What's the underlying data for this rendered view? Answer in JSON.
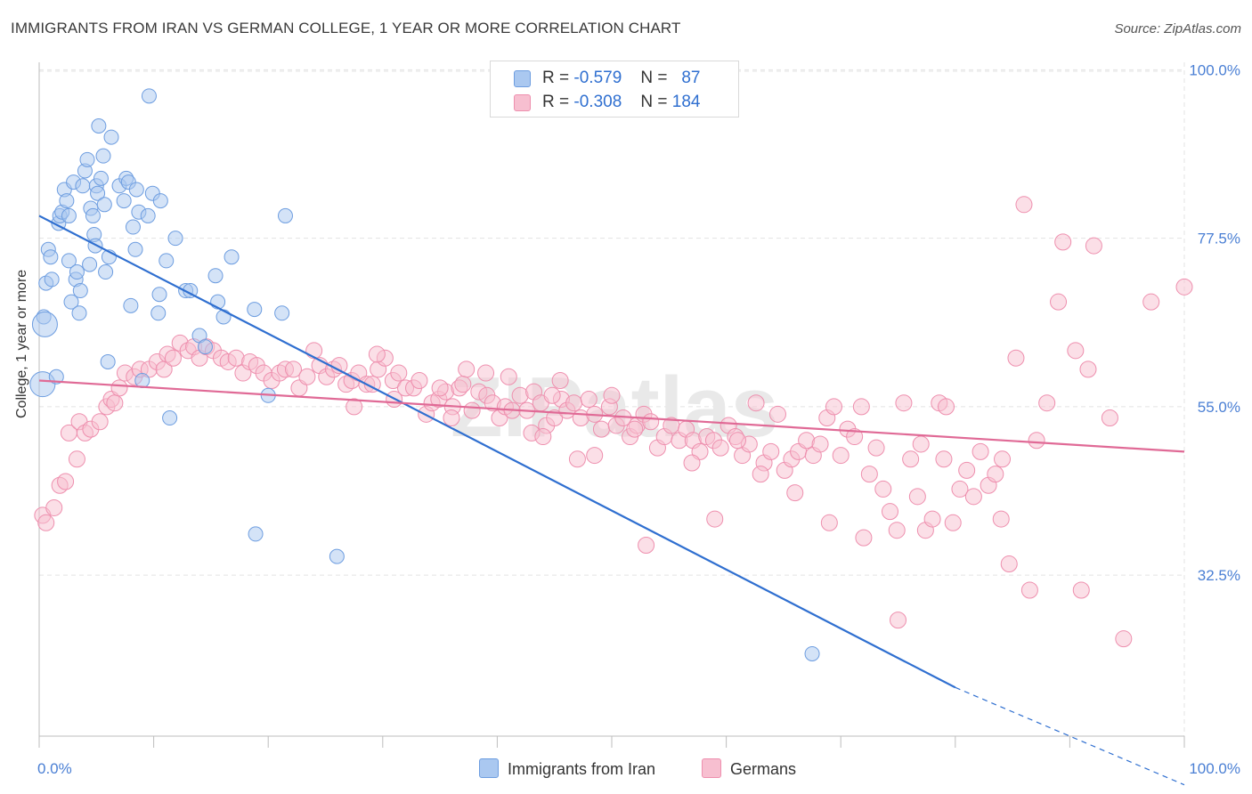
{
  "title": "IMMIGRANTS FROM IRAN VS GERMAN COLLEGE, 1 YEAR OR MORE CORRELATION CHART",
  "source": "Source: ZipAtlas.com",
  "watermark": "ZIPatlas",
  "colors": {
    "blue_fill": "#aac8f0",
    "blue_stroke": "#6d9de0",
    "blue_line": "#2f6fd0",
    "pink_fill": "#f7bfd0",
    "pink_stroke": "#ee8fae",
    "pink_line": "#e06a96",
    "axis_text": "#4a7fd4",
    "grid": "#e3e3e3"
  },
  "legend": {
    "rows": [
      {
        "r_label": "R =",
        "r_value": "-0.579",
        "n_label": "N =",
        "n_value": "87"
      },
      {
        "r_label": "R =",
        "r_value": "-0.308",
        "n_label": "N =",
        "n_value": "184"
      }
    ]
  },
  "chart_data": {
    "type": "scatter",
    "title": "IMMIGRANTS FROM IRAN VS GERMAN COLLEGE, 1 YEAR OR MORE CORRELATION CHART",
    "xlabel": "",
    "ylabel": "College, 1 year or more",
    "xlim": [
      0,
      100
    ],
    "ylim": [
      11,
      101
    ],
    "x_tick_labels": [
      "0.0%",
      "100.0%"
    ],
    "y_ticks": [
      32.5,
      55.0,
      77.5,
      100.0
    ],
    "y_tick_labels": [
      "32.5%",
      "55.0%",
      "77.5%",
      "100.0%"
    ],
    "grid": true,
    "legend_position": "bottom",
    "series": [
      {
        "name": "Immigrants from Iran",
        "color": "#aac8f0",
        "trend": {
          "x": [
            0,
            80
          ],
          "y": [
            80.5,
            17.5
          ],
          "dashed_to": [
            100,
            4.5
          ]
        },
        "points": [
          [
            0.3,
            58.0
          ],
          [
            0.4,
            67.0
          ],
          [
            0.5,
            66.0
          ],
          [
            0.6,
            71.5
          ],
          [
            0.8,
            76.0
          ],
          [
            1.0,
            75.0
          ],
          [
            1.1,
            72.0
          ],
          [
            1.5,
            59.0
          ],
          [
            1.7,
            79.5
          ],
          [
            1.8,
            80.5
          ],
          [
            2.0,
            81.0
          ],
          [
            2.2,
            84.0
          ],
          [
            2.4,
            82.5
          ],
          [
            2.6,
            80.5
          ],
          [
            2.6,
            74.5
          ],
          [
            2.8,
            69.0
          ],
          [
            3.0,
            85.0
          ],
          [
            3.2,
            72.0
          ],
          [
            3.3,
            73.0
          ],
          [
            3.5,
            67.5
          ],
          [
            3.6,
            70.5
          ],
          [
            3.8,
            84.5
          ],
          [
            4.0,
            86.5
          ],
          [
            4.2,
            88.0
          ],
          [
            4.4,
            74.0
          ],
          [
            4.5,
            81.5
          ],
          [
            4.7,
            80.5
          ],
          [
            4.8,
            78.0
          ],
          [
            4.9,
            76.5
          ],
          [
            5.0,
            84.5
          ],
          [
            5.1,
            83.5
          ],
          [
            5.2,
            92.5
          ],
          [
            5.4,
            85.5
          ],
          [
            5.6,
            88.5
          ],
          [
            5.7,
            82.0
          ],
          [
            5.8,
            73.0
          ],
          [
            6.0,
            61.0
          ],
          [
            6.1,
            75.0
          ],
          [
            6.3,
            91.0
          ],
          [
            7.0,
            84.5
          ],
          [
            7.4,
            82.5
          ],
          [
            7.6,
            85.5
          ],
          [
            7.8,
            85.0
          ],
          [
            8.0,
            68.5
          ],
          [
            8.2,
            79.0
          ],
          [
            8.4,
            76.0
          ],
          [
            8.5,
            84.0
          ],
          [
            8.7,
            81.0
          ],
          [
            9.0,
            58.5
          ],
          [
            9.5,
            80.5
          ],
          [
            9.9,
            83.5
          ],
          [
            10.4,
            67.5
          ],
          [
            10.5,
            70.0
          ],
          [
            10.6,
            82.5
          ],
          [
            11.1,
            74.5
          ],
          [
            11.4,
            53.5
          ],
          [
            11.9,
            77.5
          ],
          [
            12.8,
            70.5
          ],
          [
            13.2,
            70.5
          ],
          [
            14.0,
            64.5
          ],
          [
            14.5,
            63.0
          ],
          [
            15.4,
            72.5
          ],
          [
            15.6,
            69.0
          ],
          [
            16.1,
            67.0
          ],
          [
            16.8,
            75.0
          ],
          [
            18.8,
            68.0
          ],
          [
            18.9,
            38.0
          ],
          [
            20.0,
            56.5
          ],
          [
            21.2,
            67.5
          ],
          [
            21.5,
            80.5
          ],
          [
            26.0,
            35.0
          ],
          [
            67.5,
            22.0
          ],
          [
            9.6,
            96.5
          ]
        ]
      },
      {
        "name": "Germans",
        "color": "#f7bfd0",
        "trend": {
          "x": [
            0,
            100
          ],
          "y": [
            58.5,
            49.0
          ]
        },
        "points": [
          [
            0.3,
            40.5
          ],
          [
            0.6,
            39.5
          ],
          [
            1.3,
            41.5
          ],
          [
            1.8,
            44.5
          ],
          [
            2.3,
            45.0
          ],
          [
            2.6,
            51.5
          ],
          [
            3.3,
            48.0
          ],
          [
            3.5,
            53.0
          ],
          [
            4.0,
            51.5
          ],
          [
            4.5,
            52.0
          ],
          [
            5.3,
            53.0
          ],
          [
            5.9,
            55.0
          ],
          [
            6.3,
            56.0
          ],
          [
            6.6,
            55.5
          ],
          [
            7.0,
            57.5
          ],
          [
            7.5,
            59.5
          ],
          [
            8.3,
            59.0
          ],
          [
            8.8,
            60.0
          ],
          [
            9.6,
            60.0
          ],
          [
            10.3,
            61.0
          ],
          [
            10.9,
            60.0
          ],
          [
            11.2,
            62.0
          ],
          [
            11.7,
            61.5
          ],
          [
            12.3,
            63.5
          ],
          [
            13.0,
            62.5
          ],
          [
            13.5,
            63.0
          ],
          [
            14.0,
            61.5
          ],
          [
            14.6,
            63.0
          ],
          [
            15.2,
            62.5
          ],
          [
            15.9,
            61.5
          ],
          [
            16.5,
            61.0
          ],
          [
            17.2,
            61.5
          ],
          [
            17.8,
            59.5
          ],
          [
            18.4,
            61.0
          ],
          [
            19.0,
            60.5
          ],
          [
            19.6,
            59.5
          ],
          [
            20.3,
            58.5
          ],
          [
            21.0,
            59.5
          ],
          [
            21.5,
            60.0
          ],
          [
            22.2,
            60.0
          ],
          [
            22.7,
            57.5
          ],
          [
            23.4,
            59.0
          ],
          [
            24.0,
            62.5
          ],
          [
            24.5,
            60.5
          ],
          [
            25.1,
            59.0
          ],
          [
            25.7,
            60.0
          ],
          [
            26.2,
            60.5
          ],
          [
            26.8,
            58.0
          ],
          [
            27.3,
            58.5
          ],
          [
            27.9,
            59.5
          ],
          [
            28.6,
            58.0
          ],
          [
            29.1,
            58.0
          ],
          [
            29.6,
            60.0
          ],
          [
            30.2,
            61.5
          ],
          [
            30.9,
            58.5
          ],
          [
            31.4,
            59.5
          ],
          [
            32.0,
            57.5
          ],
          [
            32.7,
            57.5
          ],
          [
            33.2,
            58.5
          ],
          [
            33.8,
            54.0
          ],
          [
            34.3,
            55.5
          ],
          [
            34.9,
            56.0
          ],
          [
            35.5,
            57.0
          ],
          [
            36.1,
            55.0
          ],
          [
            36.7,
            57.5
          ],
          [
            37.3,
            60.0
          ],
          [
            37.8,
            54.5
          ],
          [
            38.4,
            57.0
          ],
          [
            39.1,
            56.5
          ],
          [
            39.6,
            55.5
          ],
          [
            40.2,
            53.5
          ],
          [
            40.7,
            55.0
          ],
          [
            41.3,
            54.5
          ],
          [
            42.0,
            56.5
          ],
          [
            42.6,
            54.5
          ],
          [
            43.2,
            57.0
          ],
          [
            43.8,
            55.5
          ],
          [
            44.3,
            52.5
          ],
          [
            45.0,
            53.5
          ],
          [
            45.6,
            56.0
          ],
          [
            46.1,
            54.5
          ],
          [
            46.7,
            55.5
          ],
          [
            47.3,
            53.5
          ],
          [
            48.0,
            56.0
          ],
          [
            48.5,
            54.0
          ],
          [
            49.1,
            52.0
          ],
          [
            49.8,
            55.0
          ],
          [
            50.4,
            52.5
          ],
          [
            51.0,
            53.5
          ],
          [
            51.6,
            51.0
          ],
          [
            52.2,
            52.5
          ],
          [
            52.8,
            54.0
          ],
          [
            53.4,
            53.0
          ],
          [
            54.0,
            49.5
          ],
          [
            54.6,
            51.0
          ],
          [
            55.2,
            52.5
          ],
          [
            55.9,
            50.5
          ],
          [
            56.5,
            52.0
          ],
          [
            57.1,
            50.5
          ],
          [
            57.7,
            49.0
          ],
          [
            58.3,
            51.0
          ],
          [
            58.9,
            50.5
          ],
          [
            59.5,
            49.5
          ],
          [
            60.2,
            52.5
          ],
          [
            60.8,
            51.0
          ],
          [
            61.4,
            48.5
          ],
          [
            62.0,
            50.0
          ],
          [
            62.6,
            55.5
          ],
          [
            63.3,
            47.5
          ],
          [
            63.9,
            49.0
          ],
          [
            64.5,
            54.0
          ],
          [
            65.1,
            46.5
          ],
          [
            65.7,
            48.0
          ],
          [
            66.3,
            49.0
          ],
          [
            67.0,
            50.5
          ],
          [
            67.6,
            48.5
          ],
          [
            68.2,
            50.0
          ],
          [
            68.8,
            53.5
          ],
          [
            69.4,
            55.0
          ],
          [
            70.0,
            48.5
          ],
          [
            70.6,
            52.0
          ],
          [
            71.2,
            51.0
          ],
          [
            71.8,
            55.0
          ],
          [
            72.5,
            46.0
          ],
          [
            73.1,
            49.5
          ],
          [
            73.7,
            44.0
          ],
          [
            74.3,
            41.0
          ],
          [
            74.9,
            38.5
          ],
          [
            75.5,
            55.5
          ],
          [
            76.1,
            48.0
          ],
          [
            76.7,
            43.0
          ],
          [
            77.4,
            38.5
          ],
          [
            78.0,
            40.0
          ],
          [
            78.6,
            55.5
          ],
          [
            79.2,
            55.0
          ],
          [
            79.8,
            39.5
          ],
          [
            80.4,
            44.0
          ],
          [
            81.0,
            46.5
          ],
          [
            81.6,
            43.0
          ],
          [
            82.2,
            49.0
          ],
          [
            82.9,
            44.5
          ],
          [
            83.5,
            46.0
          ],
          [
            84.1,
            48.0
          ],
          [
            84.7,
            34.0
          ],
          [
            85.3,
            61.5
          ],
          [
            86.0,
            82.0
          ],
          [
            86.5,
            30.5
          ],
          [
            87.1,
            50.5
          ],
          [
            88.0,
            55.5
          ],
          [
            89.0,
            69.0
          ],
          [
            89.4,
            77.0
          ],
          [
            90.5,
            62.5
          ],
          [
            91.0,
            30.5
          ],
          [
            91.6,
            60.0
          ],
          [
            92.1,
            76.5
          ],
          [
            93.5,
            53.5
          ],
          [
            94.7,
            24.0
          ],
          [
            97.1,
            69.0
          ],
          [
            100.0,
            71.0
          ],
          [
            77.0,
            50.0
          ],
          [
            72.0,
            37.5
          ],
          [
            66.0,
            43.5
          ],
          [
            59.0,
            40.0
          ],
          [
            53.0,
            36.5
          ],
          [
            47.0,
            48.0
          ],
          [
            43.0,
            51.5
          ],
          [
            39.0,
            59.5
          ],
          [
            37.0,
            58.0
          ],
          [
            35.0,
            57.5
          ],
          [
            31.0,
            56.0
          ],
          [
            29.5,
            62.0
          ],
          [
            27.5,
            55.0
          ],
          [
            36.0,
            53.5
          ],
          [
            41.0,
            59.0
          ],
          [
            44.0,
            51.0
          ],
          [
            48.5,
            48.5
          ],
          [
            50.0,
            56.5
          ],
          [
            52.0,
            52.0
          ],
          [
            57.0,
            47.5
          ],
          [
            61.0,
            50.5
          ],
          [
            63.0,
            46.0
          ],
          [
            69.0,
            39.5
          ],
          [
            75.0,
            26.5
          ],
          [
            79.0,
            48.0
          ],
          [
            84.0,
            40.0
          ],
          [
            45.5,
            58.5
          ],
          [
            44.8,
            56.5
          ]
        ]
      }
    ]
  },
  "bottom_legend": {
    "series1_label": "Immigrants from Iran",
    "series2_label": "Germans"
  }
}
